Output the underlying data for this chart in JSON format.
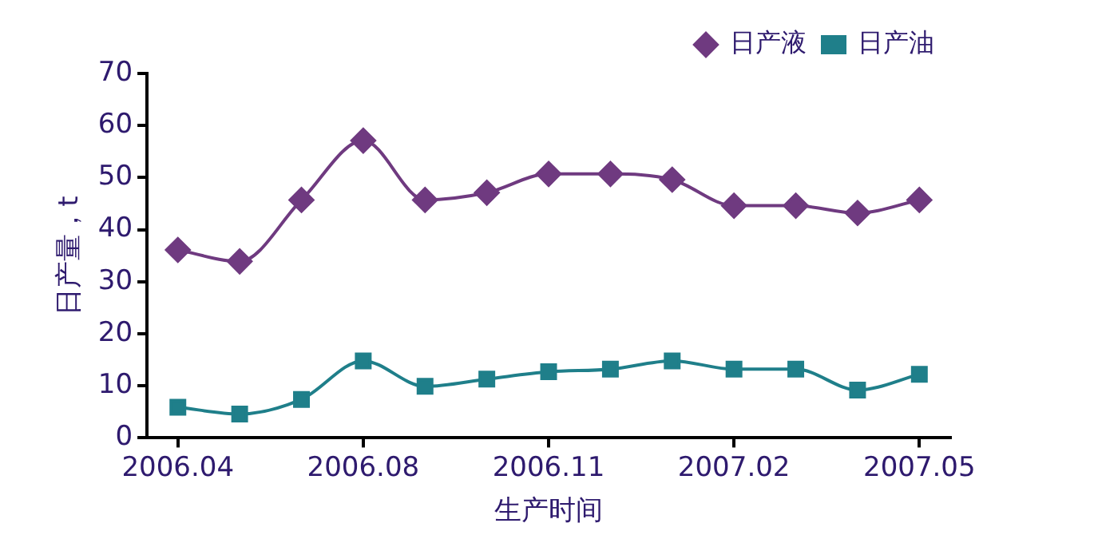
{
  "chart_data": {
    "type": "line",
    "xlabel": "生产时间",
    "ylabel": "日产量，t",
    "categories": [
      "2006.04",
      null,
      null,
      "2006.08",
      null,
      null,
      "2006.11",
      null,
      null,
      "2007.02",
      null,
      null,
      "2007.05"
    ],
    "ylim": [
      0,
      70
    ],
    "yticks": [
      0,
      10,
      20,
      30,
      40,
      50,
      60,
      70
    ],
    "series": [
      {
        "name": "日产液",
        "color": "#6f3a80",
        "marker": "diamond",
        "values": [
          36.1,
          33.9,
          45.7,
          57.1,
          45.7,
          47.1,
          50.7,
          50.7,
          49.6,
          44.6,
          44.6,
          43.2,
          45.7
        ]
      },
      {
        "name": "日产油",
        "color": "#1f7f8a",
        "marker": "square",
        "values": [
          5.9,
          4.6,
          7.4,
          14.8,
          9.9,
          11.3,
          12.7,
          13.2,
          14.8,
          13.2,
          13.2,
          9.2,
          12.2
        ]
      }
    ],
    "grid": false,
    "legend": "top right"
  }
}
